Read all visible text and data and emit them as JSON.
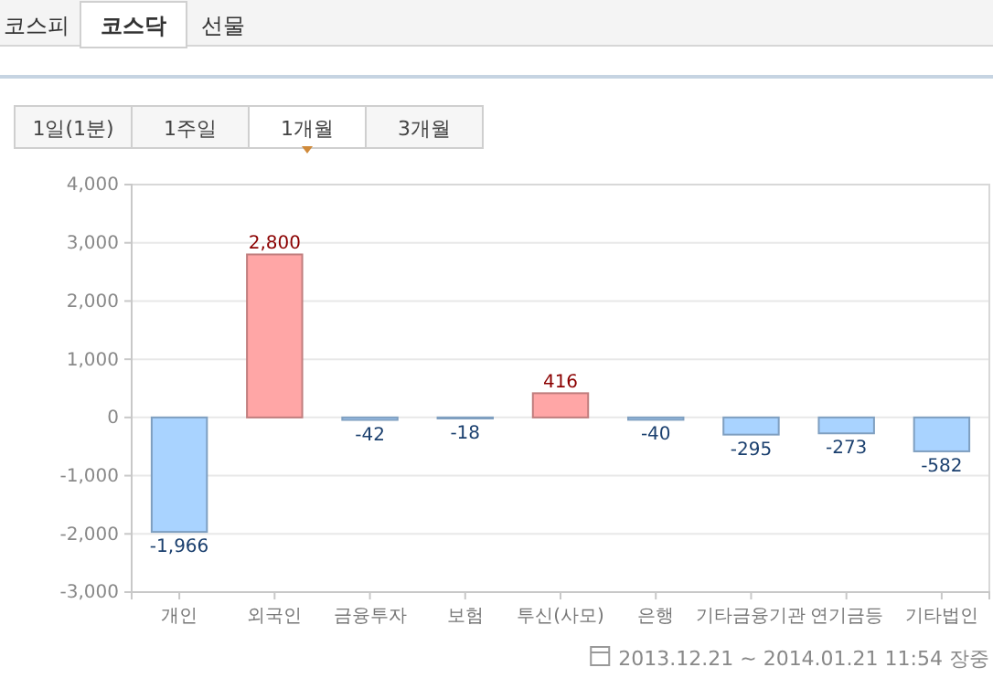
{
  "chart_data": {
    "type": "bar",
    "categories": [
      "개인",
      "외국인",
      "금융투자",
      "보험",
      "투신(사모)",
      "은행",
      "기타금융기관",
      "연기금등",
      "기타법인"
    ],
    "values": [
      -1966,
      2800,
      -42,
      -18,
      416,
      -40,
      -295,
      -273,
      -582
    ],
    "colors": [
      "#a9d3ff",
      "#ffa6a6",
      "#a9d3ff",
      "#a9d3ff",
      "#ffa6a6",
      "#a9d3ff",
      "#a9d3ff",
      "#a9d3ff",
      "#a9d3ff"
    ],
    "ylim": [
      -3000,
      4000
    ],
    "yticks": [
      {
        "value": -3000,
        "label": "-3,000"
      },
      {
        "value": -2000,
        "label": "-2,000"
      },
      {
        "value": -1000,
        "label": "-1,000"
      },
      0,
      {
        "value": 1000,
        "label": "1,000"
      },
      {
        "value": 2000,
        "label": "2,000"
      },
      {
        "value": 3000,
        "label": "3,000"
      },
      {
        "value": 4000,
        "label": "4,000"
      }
    ],
    "value_labels": [
      "-1,966",
      "2,800",
      "-42",
      "-18",
      "416",
      "-40",
      "-295",
      "-273",
      "-582"
    ],
    "grid": "y",
    "annotations": [
      "코스피",
      "코스닥",
      "선물",
      "1일(1분)",
      "1주일",
      "1개월",
      "3개월",
      "2013.12.21 ~ 2014.01.21 11:54 장중"
    ]
  }
}
